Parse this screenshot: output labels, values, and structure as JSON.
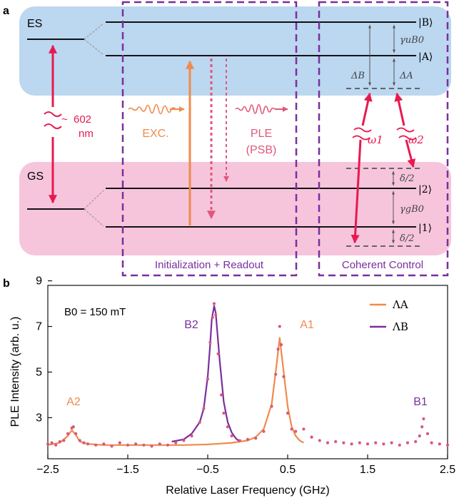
{
  "panel_a": {
    "label": "a",
    "es": "ES",
    "gs": "GS",
    "wavelength_approx": "~",
    "wavelength_value": "602",
    "wavelength_unit": "nm",
    "exc": "EXC.",
    "ple": "PLE",
    "psb": "(PSB)",
    "box_init": "Initialization + Readout",
    "box_coherent": "Coherent Control",
    "ket_B": "|B⟩",
    "ket_A": "|A⟩",
    "ket_2": "|2⟩",
    "ket_1": "|1⟩",
    "gamma_u": "γuB0",
    "gamma_g": "γgB0",
    "delta_B": "ΔB",
    "delta_A": "ΔA",
    "delta_half_top": "δ/2",
    "delta_half_bottom": "δ/2",
    "omega1": "ω1",
    "omega2": "ω2",
    "colors": {
      "es_band": "#bcd7f0",
      "gs_band": "#f6c5dc",
      "dashed_box": "#7b2f9e",
      "transition_red": "#e8194f",
      "exc_orange": "#f08a4b",
      "ple_red": "#e0567a"
    }
  },
  "panel_b": {
    "label": "b",
    "annotation": "B0 = 150 mT",
    "peak_labels": [
      {
        "text": "A2",
        "color": "#f08a4b"
      },
      {
        "text": "B2",
        "color": "#7b2f9e"
      },
      {
        "text": "A1",
        "color": "#f08a4b"
      },
      {
        "text": "B1",
        "color": "#7b2f9e"
      }
    ]
  },
  "chart_data": {
    "type": "scatter",
    "title": "",
    "xlabel": "Relative Laser Frequency (GHz)",
    "ylabel": "PLE Intensity (arb. u.)",
    "xlim": [
      -2.5,
      2.5
    ],
    "ylim": [
      1.2,
      8.8
    ],
    "xticks": [
      -2.5,
      -1.5,
      -0.5,
      0.5,
      1.5,
      2.5
    ],
    "xtick_labels": [
      "−2.5",
      "−1.5",
      "−0.5",
      "0.5",
      "1.5",
      "2.5"
    ],
    "yticks": [
      3,
      5,
      7,
      9
    ],
    "ytick_labels": [
      "3",
      "5",
      "7",
      "9"
    ],
    "grid": false,
    "legend_position": "top-right",
    "series": [
      {
        "name": "ΛA",
        "kind": "line",
        "color": "#f08a4b",
        "x": [
          -2.5,
          -2.35,
          -2.25,
          -2.2,
          -2.15,
          -2.1,
          -2.0,
          -1.8,
          -1.5,
          -1.2,
          -1.0,
          -0.8,
          -0.6,
          -0.5,
          -0.4,
          -0.2,
          0.0,
          0.1,
          0.2,
          0.3,
          0.35,
          0.4,
          0.45,
          0.5,
          0.55,
          0.6,
          0.65,
          0.7
        ],
        "y": [
          1.8,
          1.9,
          2.2,
          2.45,
          2.25,
          1.95,
          1.85,
          1.8,
          1.8,
          1.8,
          1.8,
          1.8,
          1.82,
          1.83,
          1.85,
          1.9,
          2.0,
          2.15,
          2.5,
          3.6,
          5.0,
          6.5,
          5.0,
          3.5,
          2.6,
          2.2,
          2.0,
          1.9
        ]
      },
      {
        "name": "ΛB",
        "kind": "line",
        "color": "#7b2f9e",
        "x": [
          -0.95,
          -0.8,
          -0.7,
          -0.6,
          -0.55,
          -0.5,
          -0.47,
          -0.45,
          -0.42,
          -0.4,
          -0.35,
          -0.3,
          -0.25,
          -0.2,
          -0.15,
          -0.1
        ],
        "y": [
          1.95,
          2.05,
          2.3,
          2.8,
          3.4,
          4.8,
          6.2,
          7.3,
          7.9,
          7.6,
          5.5,
          3.7,
          2.8,
          2.35,
          2.1,
          1.95
        ]
      },
      {
        "name": "data",
        "kind": "points",
        "color": "#d9577a",
        "x": [
          -2.5,
          -2.45,
          -2.4,
          -2.35,
          -2.3,
          -2.25,
          -2.2,
          -2.18,
          -2.15,
          -2.1,
          -2.05,
          -2.0,
          -1.9,
          -1.8,
          -1.7,
          -1.6,
          -1.5,
          -1.4,
          -1.3,
          -1.2,
          -1.1,
          -1.0,
          -0.9,
          -0.8,
          -0.7,
          -0.6,
          -0.55,
          -0.5,
          -0.47,
          -0.44,
          -0.42,
          -0.4,
          -0.37,
          -0.33,
          -0.3,
          -0.25,
          -0.2,
          -0.1,
          0.0,
          0.1,
          0.2,
          0.3,
          0.35,
          0.38,
          0.4,
          0.42,
          0.45,
          0.5,
          0.55,
          0.6,
          0.7,
          0.8,
          0.9,
          1.0,
          1.1,
          1.2,
          1.3,
          1.4,
          1.5,
          1.6,
          1.7,
          1.8,
          1.9,
          2.0,
          2.1,
          2.15,
          2.18,
          2.2,
          2.25,
          2.3,
          2.4,
          2.5
        ],
        "y": [
          1.85,
          1.9,
          1.8,
          1.95,
          2.0,
          2.3,
          2.55,
          2.6,
          2.3,
          2.0,
          1.9,
          1.85,
          1.8,
          1.85,
          1.75,
          1.9,
          1.8,
          1.85,
          1.8,
          1.75,
          1.85,
          1.8,
          1.9,
          2.0,
          2.2,
          2.8,
          3.4,
          4.7,
          6.3,
          7.4,
          8.0,
          7.5,
          5.8,
          4.0,
          3.2,
          2.6,
          2.2,
          2.0,
          2.05,
          2.1,
          2.4,
          3.5,
          4.9,
          6.0,
          7.0,
          6.2,
          4.8,
          3.2,
          2.5,
          2.4,
          2.5,
          2.15,
          2.0,
          1.9,
          1.95,
          1.9,
          1.85,
          1.9,
          1.85,
          1.9,
          1.85,
          1.9,
          1.8,
          1.9,
          1.95,
          2.2,
          2.6,
          2.95,
          2.3,
          1.9,
          1.85,
          1.8
        ]
      }
    ]
  }
}
